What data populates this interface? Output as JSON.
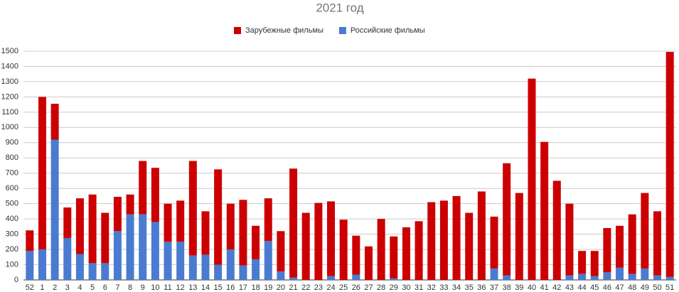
{
  "chart_data": {
    "type": "stacked-bar",
    "title": "2021 год",
    "categories": [
      "52",
      "1",
      "2",
      "3",
      "4",
      "5",
      "6",
      "7",
      "8",
      "9",
      "10",
      "11",
      "12",
      "13",
      "14",
      "15",
      "16",
      "17",
      "18",
      "19",
      "20",
      "21",
      "22",
      "23",
      "24",
      "25",
      "26",
      "27",
      "28",
      "29",
      "30",
      "31",
      "32",
      "33",
      "34",
      "35",
      "36",
      "37",
      "38",
      "39",
      "40",
      "41",
      "42",
      "43",
      "44",
      "45",
      "46",
      "47",
      "48",
      "49",
      "50",
      "51"
    ],
    "series": [
      {
        "name": "Зарубежные фильмы",
        "color": "#cc0000",
        "values": [
          135,
          1000,
          235,
          200,
          365,
          450,
          330,
          225,
          130,
          350,
          355,
          250,
          270,
          620,
          285,
          625,
          300,
          430,
          220,
          280,
          265,
          715,
          440,
          505,
          490,
          395,
          255,
          220,
          400,
          275,
          345,
          385,
          510,
          520,
          550,
          440,
          580,
          340,
          735,
          570,
          1320,
          905,
          650,
          470,
          150,
          165,
          290,
          275,
          390,
          495,
          420,
          1475
        ]
      },
      {
        "name": "Российские фильмы",
        "color": "#4a7bd0",
        "values": [
          190,
          200,
          920,
          275,
          170,
          110,
          110,
          320,
          430,
          430,
          380,
          250,
          250,
          160,
          165,
          100,
          200,
          95,
          135,
          255,
          55,
          15,
          0,
          0,
          25,
          0,
          35,
          0,
          0,
          10,
          0,
          0,
          0,
          0,
          0,
          0,
          0,
          75,
          30,
          0,
          0,
          0,
          0,
          30,
          40,
          25,
          50,
          80,
          40,
          75,
          30,
          20
        ]
      }
    ],
    "ylim": [
      0,
      1500
    ],
    "yticks": [
      0,
      100,
      200,
      300,
      400,
      500,
      600,
      700,
      800,
      900,
      1000,
      1100,
      1200,
      1300,
      1400,
      1500
    ],
    "grid": true
  }
}
